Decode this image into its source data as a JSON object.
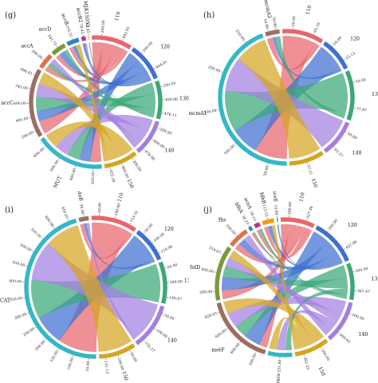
{
  "chart_data": [
    {
      "type": "chord",
      "panel_label": "(g)",
      "groups": [
        {
          "name": "110",
          "ticks": [
            "200.00",
            "492.95"
          ],
          "color": "#e8656c"
        },
        {
          "name": "120",
          "ticks": [
            "200.00",
            "444.01"
          ],
          "color": "#3f6fd0"
        },
        {
          "name": "130",
          "ticks": [
            "200.00",
            "400.00",
            "476.11"
          ],
          "color": "#3aa877"
        },
        {
          "name": "140",
          "ticks": [
            "200.00",
            "400.00",
            "474.06"
          ],
          "color": "#a47fe0"
        },
        {
          "name": "150",
          "ticks": [
            "200.00",
            "400.00",
            "425.39"
          ],
          "color": "#d5a521"
        },
        {
          "name": "MUT",
          "ticks": [
            "200.00",
            "400.00",
            "600.00",
            "800.00"
          ],
          "color": "#34b7c6"
        },
        {
          "name": "accC",
          "ticks": [
            "200.00",
            "400.00",
            "600.00",
            "743.00",
            "986.81"
          ],
          "color": "#9b6f60"
        },
        {
          "name": "accA",
          "ticks": [
            "200.00"
          ],
          "color": "#e0714c"
        },
        {
          "name": "accD",
          "ticks": [
            "241.72"
          ],
          "color": "#7a9a3a"
        },
        {
          "name": "accB",
          "ticks": [
            "276.51"
          ],
          "color": "#2e86c1"
        },
        {
          "name": "accB2",
          "ticks": [
            "78.43"
          ],
          "color": "#b23a8a"
        },
        {
          "name": "MJK15052",
          "ticks": [
            "13.65"
          ],
          "color": "#f39c12"
        }
      ],
      "links": [
        {
          "source": "MUT",
          "target": "110",
          "value": 150
        },
        {
          "source": "MUT",
          "target": "120",
          "value": 160
        },
        {
          "source": "MUT",
          "target": "130",
          "value": 170
        },
        {
          "source": "MUT",
          "target": "140",
          "value": 190
        },
        {
          "source": "MUT",
          "target": "150",
          "value": 200
        },
        {
          "source": "accC",
          "target": "110",
          "value": 180
        },
        {
          "source": "accC",
          "target": "120",
          "value": 150
        },
        {
          "source": "accC",
          "target": "130",
          "value": 190
        },
        {
          "source": "accC",
          "target": "140",
          "value": 180
        },
        {
          "source": "accC",
          "target": "150",
          "value": 170
        },
        {
          "source": "accA",
          "target": "110",
          "value": 70
        },
        {
          "source": "accA",
          "target": "130",
          "value": 60
        },
        {
          "source": "accA",
          "target": "140",
          "value": 70
        },
        {
          "source": "accD",
          "target": "110",
          "value": 60
        },
        {
          "source": "accD",
          "target": "120",
          "value": 80
        },
        {
          "source": "accD",
          "target": "130",
          "value": 50
        },
        {
          "source": "accB",
          "target": "110",
          "value": 50
        },
        {
          "source": "accB",
          "target": "120",
          "value": 50
        },
        {
          "source": "accB",
          "target": "150",
          "value": 60
        },
        {
          "source": "accB2",
          "target": "120",
          "value": 40
        },
        {
          "source": "accB2",
          "target": "140",
          "value": 20
        },
        {
          "source": "MJK15052",
          "target": "130",
          "value": 14
        }
      ]
    },
    {
      "type": "chord",
      "panel_label": "(h)",
      "groups": [
        {
          "name": "110",
          "ticks": [
            "50.00",
            "65.19"
          ],
          "color": "#e8656c"
        },
        {
          "name": "120",
          "ticks": [
            "50.00",
            "53.13"
          ],
          "color": "#3f6fd0"
        },
        {
          "name": "130",
          "ticks": [
            "50.00",
            "77.87"
          ],
          "color": "#3aa877"
        },
        {
          "name": "140",
          "ticks": [
            "50.00",
            "62.57"
          ],
          "color": "#a47fe0"
        },
        {
          "name": "150",
          "ticks": [
            "57.21"
          ],
          "color": "#d5a521"
        },
        {
          "name": "mcmA1",
          "ticks": [
            "50.00",
            "100.00",
            "150.00",
            "200.00",
            "250.00"
          ],
          "color": "#34b7c6"
        },
        {
          "name": "mcmA2",
          "ticks": [
            "14.96",
            "50.00"
          ],
          "color": "#9b6f60"
        }
      ],
      "links": [
        {
          "source": "mcmA1",
          "target": "110",
          "value": 55
        },
        {
          "source": "mcmA1",
          "target": "120",
          "value": 48
        },
        {
          "source": "mcmA1",
          "target": "130",
          "value": 70
        },
        {
          "source": "mcmA1",
          "target": "140",
          "value": 58
        },
        {
          "source": "mcmA1",
          "target": "150",
          "value": 55
        },
        {
          "source": "mcmA2",
          "target": "110",
          "value": 10
        },
        {
          "source": "mcmA2",
          "target": "120",
          "value": 5
        },
        {
          "source": "mcmA2",
          "target": "130",
          "value": 8
        }
      ]
    },
    {
      "type": "chord",
      "panel_label": "(i)",
      "groups": [
        {
          "name": "110",
          "ticks": [
            "50.00",
            "100.00",
            "153.52"
          ],
          "color": "#e8656c"
        },
        {
          "name": "120",
          "ticks": [
            "50.00",
            "100.00",
            "119.96"
          ],
          "color": "#3f6fd0"
        },
        {
          "name": "130",
          "ticks": [
            "50.00",
            "100.00",
            "148.67"
          ],
          "color": "#3aa877"
        },
        {
          "name": "140",
          "ticks": [
            "50.00",
            "100.00",
            "155.27"
          ],
          "color": "#a47fe0"
        },
        {
          "name": "150",
          "ticks": [
            "50.00",
            "100.00",
            "131.13"
          ],
          "color": "#d5a521"
        },
        {
          "name": "ACAT",
          "ticks": [
            "50.00",
            "100.00",
            "150.00",
            "200.00",
            "250.00",
            "300.00",
            "350.00",
            "400.00",
            "450.00",
            "500.00",
            "550.00",
            "600.00",
            "650.00"
          ],
          "color": "#34b7c6"
        },
        {
          "name": "atoB",
          "ticks": [
            "38.48"
          ],
          "color": "#9b6f60"
        }
      ],
      "links": [
        {
          "source": "ACAT",
          "target": "110",
          "value": 140
        },
        {
          "source": "ACAT",
          "target": "120",
          "value": 110
        },
        {
          "source": "ACAT",
          "target": "130",
          "value": 140
        },
        {
          "source": "ACAT",
          "target": "140",
          "value": 145
        },
        {
          "source": "ACAT",
          "target": "150",
          "value": 125
        },
        {
          "source": "atoB",
          "target": "110",
          "value": 14
        },
        {
          "source": "atoB",
          "target": "120",
          "value": 10
        },
        {
          "source": "atoB",
          "target": "140",
          "value": 10
        }
      ]
    },
    {
      "type": "chord",
      "panel_label": "(j)",
      "groups": [
        {
          "name": "110",
          "ticks": [
            "200.00",
            "327.46"
          ],
          "color": "#e8656c"
        },
        {
          "name": "120",
          "ticks": [
            "200.00",
            "447.90"
          ],
          "color": "#3f6fd0"
        },
        {
          "name": "130",
          "ticks": [
            "200.00",
            "367.47"
          ],
          "color": "#3aa877"
        },
        {
          "name": "140",
          "ticks": [
            "200.00",
            "400.65"
          ],
          "color": "#a47fe0"
        },
        {
          "name": "150",
          "ticks": [
            "200.00",
            "362.33"
          ],
          "color": "#d5a521"
        },
        {
          "name": "sucs",
          "ticks": [
            "231.88"
          ],
          "color": "#34b7c6"
        },
        {
          "name": "metF",
          "ticks": [
            "200.00",
            "400.00",
            "600.00",
            "658.03"
          ],
          "color": "#9b6f60"
        },
        {
          "name": "folD",
          "ticks": [
            "200.00",
            "400.00",
            "514.67"
          ],
          "color": "#7a9a3a"
        },
        {
          "name": "fhs",
          "ticks": [
            "200.00"
          ],
          "color": "#e0714c"
        },
        {
          "name": "fdhA",
          "ticks": [
            "36.21"
          ],
          "color": "#2e86c1"
        },
        {
          "name": "aceA",
          "ticks": [
            "58.11"
          ],
          "color": "#b23a8a"
        },
        {
          "name": "fdhB",
          "ticks": [
            "113.52"
          ],
          "color": "#f39c12"
        },
        {
          "name": "aceE",
          "ticks": [
            "14.60"
          ],
          "color": "#16a085"
        }
      ],
      "links": [
        {
          "source": "metF",
          "target": "110",
          "value": 80
        },
        {
          "source": "metF",
          "target": "120",
          "value": 170
        },
        {
          "source": "metF",
          "target": "130",
          "value": 130
        },
        {
          "source": "metF",
          "target": "140",
          "value": 150
        },
        {
          "source": "metF",
          "target": "150",
          "value": 130
        },
        {
          "source": "folD",
          "target": "110",
          "value": 90
        },
        {
          "source": "folD",
          "target": "120",
          "value": 140
        },
        {
          "source": "folD",
          "target": "130",
          "value": 110
        },
        {
          "source": "folD",
          "target": "140",
          "value": 90
        },
        {
          "source": "folD",
          "target": "150",
          "value": 85
        },
        {
          "source": "sucs",
          "target": "130",
          "value": 60
        },
        {
          "source": "sucs",
          "target": "140",
          "value": 90
        },
        {
          "source": "sucs",
          "target": "150",
          "value": 80
        },
        {
          "source": "fhs",
          "target": "110",
          "value": 60
        },
        {
          "source": "fhs",
          "target": "120",
          "value": 70
        },
        {
          "source": "fhs",
          "target": "140",
          "value": 70
        },
        {
          "source": "fdhB",
          "target": "110",
          "value": 40
        },
        {
          "source": "fdhB",
          "target": "120",
          "value": 40
        },
        {
          "source": "fdhB",
          "target": "150",
          "value": 33
        },
        {
          "source": "aceA",
          "target": "110",
          "value": 30
        },
        {
          "source": "aceA",
          "target": "130",
          "value": 28
        },
        {
          "source": "fdhA",
          "target": "110",
          "value": 20
        },
        {
          "source": "fdhA",
          "target": "130",
          "value": 16
        },
        {
          "source": "aceE",
          "target": "120",
          "value": 14
        }
      ]
    }
  ]
}
